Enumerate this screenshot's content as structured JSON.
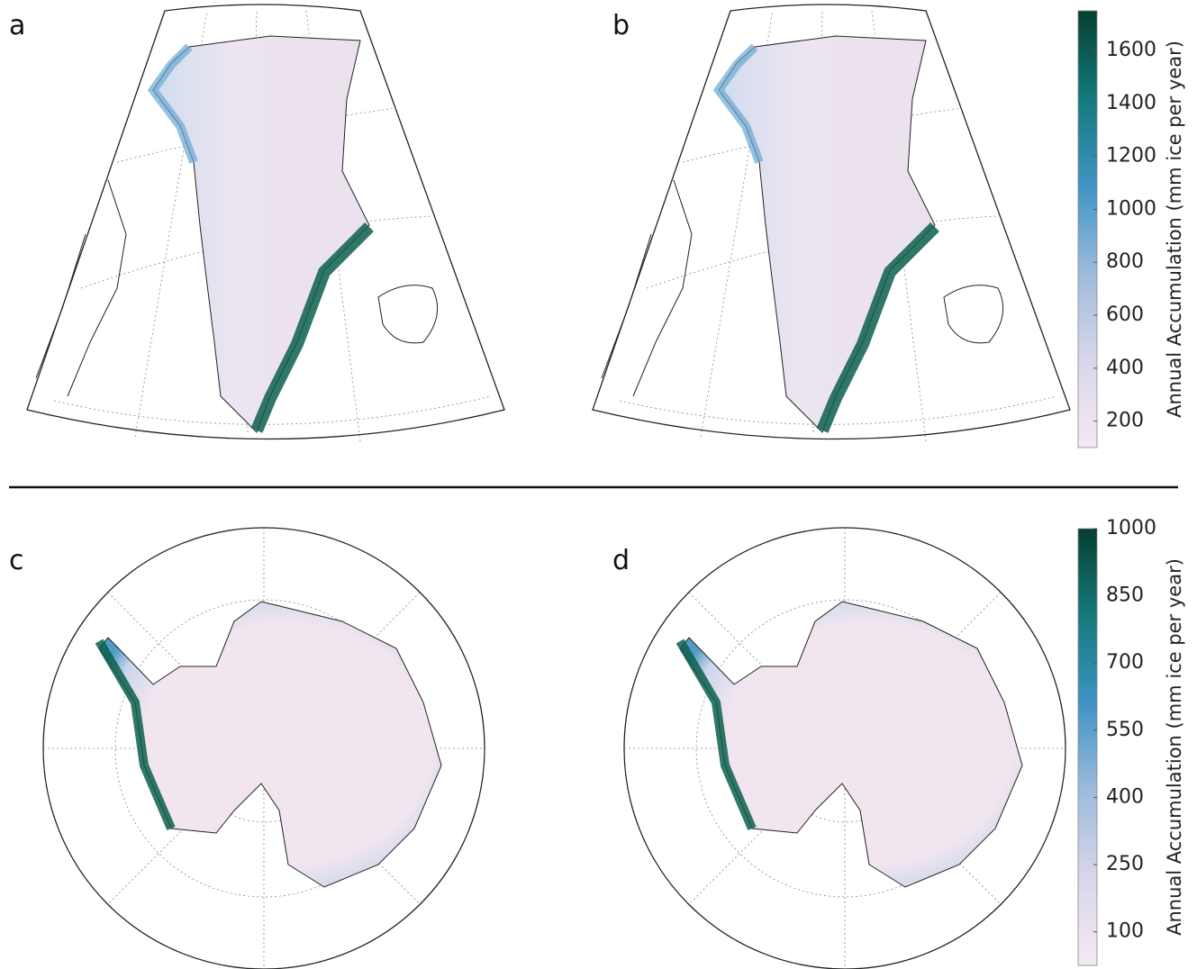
{
  "panels": [
    {
      "label": "a"
    },
    {
      "label": "b"
    },
    {
      "label": "c"
    },
    {
      "label": "d"
    }
  ],
  "colorbars": [
    {
      "label": "Annual Accumulation (mm ice per year)",
      "range": [
        100,
        1750
      ],
      "ticks": [
        200,
        400,
        600,
        800,
        1000,
        1200,
        1400,
        1600
      ]
    },
    {
      "label": "Annual Accumulation (mm ice per year)",
      "range": [
        25,
        1000
      ],
      "ticks": [
        100,
        250,
        400,
        550,
        700,
        850,
        1000
      ]
    }
  ]
}
